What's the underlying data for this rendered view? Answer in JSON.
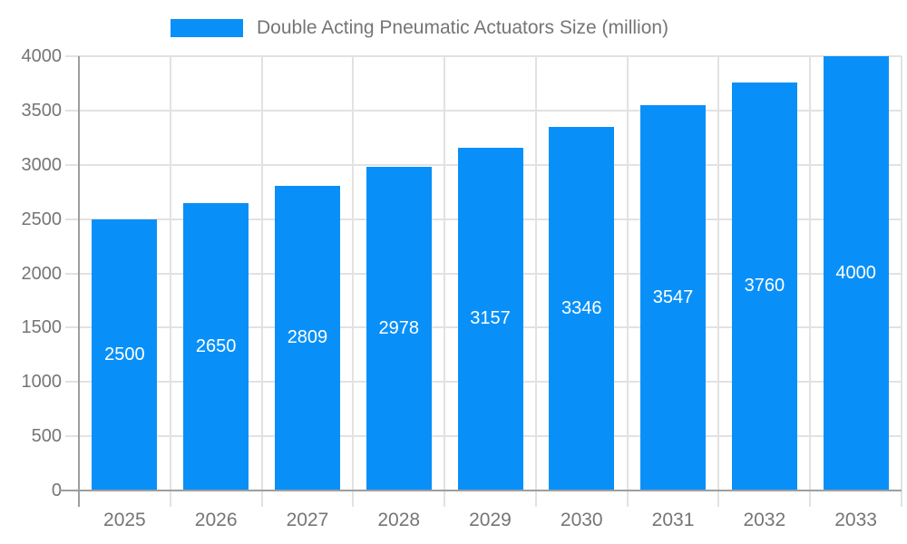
{
  "legend": {
    "label": "Double Acting Pneumatic Actuators Size (million)",
    "swatch_color": "#0990F8"
  },
  "chart_data": {
    "type": "bar",
    "title": "Double Acting Pneumatic Actuators Size (million)",
    "categories": [
      "2025",
      "2026",
      "2027",
      "2028",
      "2029",
      "2030",
      "2031",
      "2032",
      "2033"
    ],
    "values": [
      2500,
      2650,
      2809,
      2978,
      3157,
      3346,
      3547,
      3760,
      4000
    ],
    "xlabel": "",
    "ylabel": "",
    "ylim": [
      0,
      4000
    ],
    "ytick_step": 500,
    "yticks": [
      0,
      500,
      1000,
      1500,
      2000,
      2500,
      3000,
      3500,
      4000
    ],
    "grid": true,
    "legend_position": "top",
    "value_labels": "inside-center",
    "bar_color": "#0990F8",
    "value_label_color": "#ffffff",
    "axis_label_color": "#757575",
    "gridline_color": "#e2e2e2",
    "axis_line_color": "#9e9e9e"
  }
}
